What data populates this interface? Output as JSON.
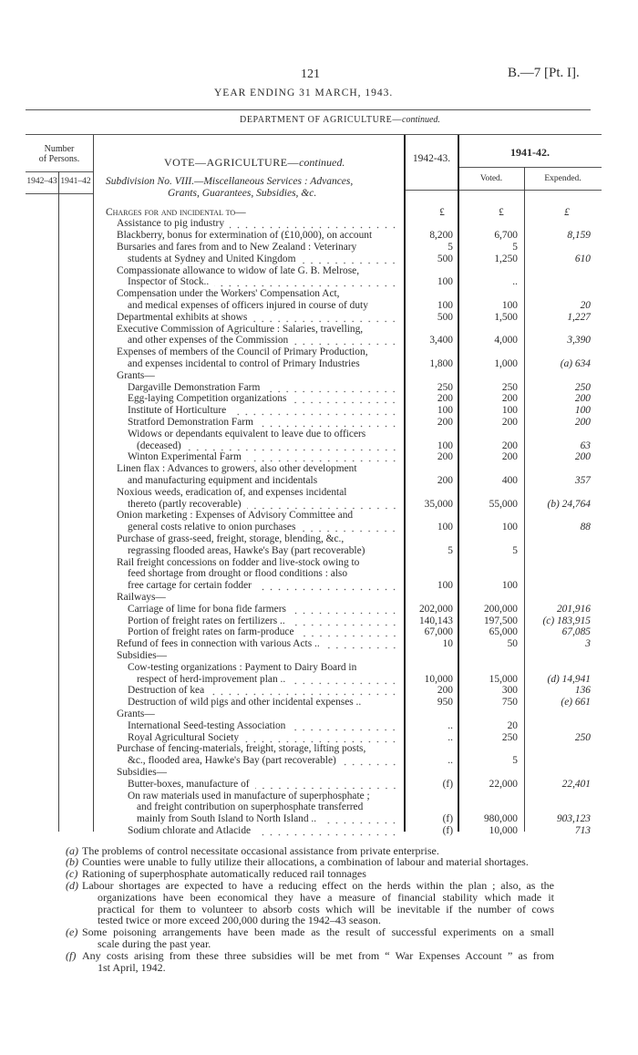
{
  "header": {
    "page_number": "121",
    "reference": "B.—7 [Pt. I].",
    "year_title": "YEAR ENDING 31 MARCH, 1943.",
    "department_title": "DEPARTMENT OF AGRICULTURE—",
    "department_suffix": "continued."
  },
  "table": {
    "persons_header_line1": "Number",
    "persons_header_line2": "of Persons.",
    "persons_year1": "1942–43",
    "persons_year2": "1941–42",
    "vote_title": "VOTE—AGRICULTURE—",
    "vote_suffix": "continued.",
    "subdivision_line1": "Subdivision No. VIII.—Miscellaneous Services : Advances,",
    "subdivision_line2": "Grants, Guarantees, Subsidies, &c.",
    "col_estimate": "1942-43.",
    "col_prior": "1941-42.",
    "col_voted": "Voted.",
    "col_expended": "Expended.",
    "rows": [
      {
        "t": "Charges for and incidental to—",
        "i": 0,
        "sc": true,
        "a": "£",
        "v": "£",
        "e": "£"
      },
      {
        "t": "Assistance to pig industry",
        "i": 1,
        "d": true
      },
      {
        "t": "Blackberry, bonus for extermination of (£10,000), on account",
        "i": 1,
        "a": "8,200",
        "v": "6,700",
        "e": "8,159"
      },
      {
        "t": "Bursaries and fares from and to New Zealand : Veterinary",
        "i": 1,
        "a": "5",
        "v": "5"
      },
      {
        "t": "students at Sydney and United Kingdom",
        "i": 2,
        "d": true,
        "a": "500",
        "v": "1,250",
        "e": "610"
      },
      {
        "t": "Compassionate allowance to widow of late G. B. Melrose,",
        "i": 1
      },
      {
        "t": "Inspector of Stock..",
        "i": 2,
        "d": true,
        "a": "100",
        "v": ".."
      },
      {
        "t": "Compensation under the Workers' Compensation Act,",
        "i": 1
      },
      {
        "t": "and medical expenses of officers injured in course of duty",
        "i": 2,
        "a": "100",
        "v": "100",
        "e": "20"
      },
      {
        "t": "Departmental exhibits at shows",
        "i": 1,
        "d": true,
        "a": "500",
        "v": "1,500",
        "e": "1,227"
      },
      {
        "t": "Executive Commission of Agriculture : Salaries, travelling,",
        "i": 1
      },
      {
        "t": "and other expenses of the Commission",
        "i": 2,
        "d": true,
        "a": "3,400",
        "v": "4,000",
        "e": "3,390"
      },
      {
        "t": "Expenses of members of the Council of Primary Production,",
        "i": 1
      },
      {
        "t": "and expenses incidental to control of Primary Industries",
        "i": 2,
        "a": "1,800",
        "v": "1,000",
        "e": "(a) 634"
      },
      {
        "t": "Grants—",
        "i": 1
      },
      {
        "t": "Dargaville Demonstration Farm",
        "i": 2,
        "d": true,
        "a": "250",
        "v": "250",
        "e": "250"
      },
      {
        "t": "Egg-laying Competition organizations",
        "i": 2,
        "d": true,
        "a": "200",
        "v": "200",
        "e": "200"
      },
      {
        "t": "Institute of Horticulture",
        "i": 2,
        "d": true,
        "a": "100",
        "v": "100",
        "e": "100"
      },
      {
        "t": "Stratford Demonstration Farm",
        "i": 2,
        "d": true,
        "a": "200",
        "v": "200",
        "e": "200"
      },
      {
        "t": "Widows or dependants equivalent to leave due to officers",
        "i": 2
      },
      {
        "t": "(deceased)",
        "i": 3,
        "d": true,
        "a": "100",
        "v": "200",
        "e": "63"
      },
      {
        "t": "Winton Experimental Farm",
        "i": 2,
        "d": true,
        "a": "200",
        "v": "200",
        "e": "200"
      },
      {
        "t": "Linen flax : Advances to growers, also other development",
        "i": 1
      },
      {
        "t": "and manufacturing equipment and incidentals",
        "i": 2,
        "a": "200",
        "v": "400",
        "e": "357"
      },
      {
        "t": "Noxious weeds, eradication of, and expenses incidental",
        "i": 1
      },
      {
        "t": "thereto (partly recoverable)",
        "i": 2,
        "d": true,
        "a": "35,000",
        "v": "55,000",
        "e": "(b) 24,764"
      },
      {
        "t": "Onion marketing : Expenses of Advisory Committee and",
        "i": 1
      },
      {
        "t": "general costs relative to onion purchases",
        "i": 2,
        "d": true,
        "a": "100",
        "v": "100",
        "e": "88"
      },
      {
        "t": "Purchase of grass-seed, freight, storage, blending, &c.,",
        "i": 1
      },
      {
        "t": "regrassing flooded areas, Hawke's Bay (part recoverable)",
        "i": 2,
        "a": "5",
        "v": "5"
      },
      {
        "t": "Rail freight concessions on fodder and live-stock owing to",
        "i": 1
      },
      {
        "t": "feed shortage from drought or flood conditions : also",
        "i": 2
      },
      {
        "t": "free cartage for certain fodder",
        "i": 2,
        "d": true,
        "a": "100",
        "v": "100"
      },
      {
        "t": "Railways—",
        "i": 1
      },
      {
        "t": "Carriage of lime for bona fide farmers",
        "i": 2,
        "d": true,
        "a": "202,000",
        "v": "200,000",
        "e": "201,916"
      },
      {
        "t": "Portion of freight rates on fertilizers ..",
        "i": 2,
        "d": true,
        "a": "140,143",
        "v": "197,500",
        "e": "(c) 183,915"
      },
      {
        "t": "Portion of freight rates on farm-produce",
        "i": 2,
        "d": true,
        "a": "67,000",
        "v": "65,000",
        "e": "67,085"
      },
      {
        "t": "Refund of fees in connection with various Acts ..",
        "i": 1,
        "d": true,
        "a": "10",
        "v": "50",
        "e": "3"
      },
      {
        "t": "Subsidies—",
        "i": 1
      },
      {
        "t": "Cow-testing organizations : Payment to Dairy Board in",
        "i": 2
      },
      {
        "t": "respect of herd-improvement plan ..",
        "i": 3,
        "d": true,
        "a": "10,000",
        "v": "15,000",
        "e": "(d) 14,941"
      },
      {
        "t": "Destruction of kea",
        "i": 2,
        "d": true,
        "a": "200",
        "v": "300",
        "e": "136"
      },
      {
        "t": "Destruction of wild pigs and other incidental expenses ..",
        "i": 2,
        "a": "950",
        "v": "750",
        "e": "(e) 661"
      },
      {
        "t": "Grants—",
        "i": 1
      },
      {
        "t": "International Seed-testing Association",
        "i": 2,
        "d": true,
        "a": "..",
        "v": "20"
      },
      {
        "t": "Royal Agricultural Society",
        "i": 2,
        "d": true,
        "a": "..",
        "v": "250",
        "e": "250"
      },
      {
        "t": "Purchase of fencing-materials, freight, storage, lifting posts,",
        "i": 1
      },
      {
        "t": "&c., flooded area, Hawke's Bay (part recoverable)",
        "i": 2,
        "d": true,
        "a": "..",
        "v": "5"
      },
      {
        "t": "Subsidies—",
        "i": 1
      },
      {
        "t": "Butter-boxes, manufacture of",
        "i": 2,
        "d": true,
        "a": "(f)",
        "v": "22,000",
        "e": "22,401"
      },
      {
        "t": "On raw materials used in manufacture of superphosphate ;",
        "i": 2
      },
      {
        "t": "and freight contribution on superphosphate transferred",
        "i": 3
      },
      {
        "t": "mainly from South Island to North Island ..",
        "i": 3,
        "d": true,
        "a": "(f)",
        "v": "980,000",
        "e": "903,123"
      },
      {
        "t": "Sodium chlorate and Atlacide",
        "i": 2,
        "d": true,
        "a": "(f)",
        "v": "10,000",
        "e": "713"
      }
    ]
  },
  "footnotes": [
    {
      "label": "(a)",
      "lines": [
        "The problems of control necessitate occasional assistance from private enterprise."
      ]
    },
    {
      "label": "(b)",
      "lines": [
        "Counties were unable to fully utilize their allocations, a combination of labour and material shortages."
      ]
    },
    {
      "label": "(c)",
      "lines": [
        "Rationing of superphosphate automatically reduced rail tonnages"
      ]
    },
    {
      "label": "(d)",
      "lines": [
        "Labour shortages are expected to have a reducing effect on the herds within the plan ; also, as the",
        "organizations have been economical they have a measure of financial stability which made it",
        "practical for them to volunteer to absorb costs which will be inevitable if the number of cows",
        "tested twice or more exceed 200,000 during the 1942–43 season."
      ]
    },
    {
      "label": "(e)",
      "lines": [
        "Some poisoning arrangements have been made as the result of successful experiments on a small",
        "scale during the past year."
      ]
    },
    {
      "label": "(f)",
      "lines": [
        "Any costs arising from these three subsidies will be met from “ War Expenses Account ” as from",
        "1st April, 1942."
      ]
    }
  ]
}
